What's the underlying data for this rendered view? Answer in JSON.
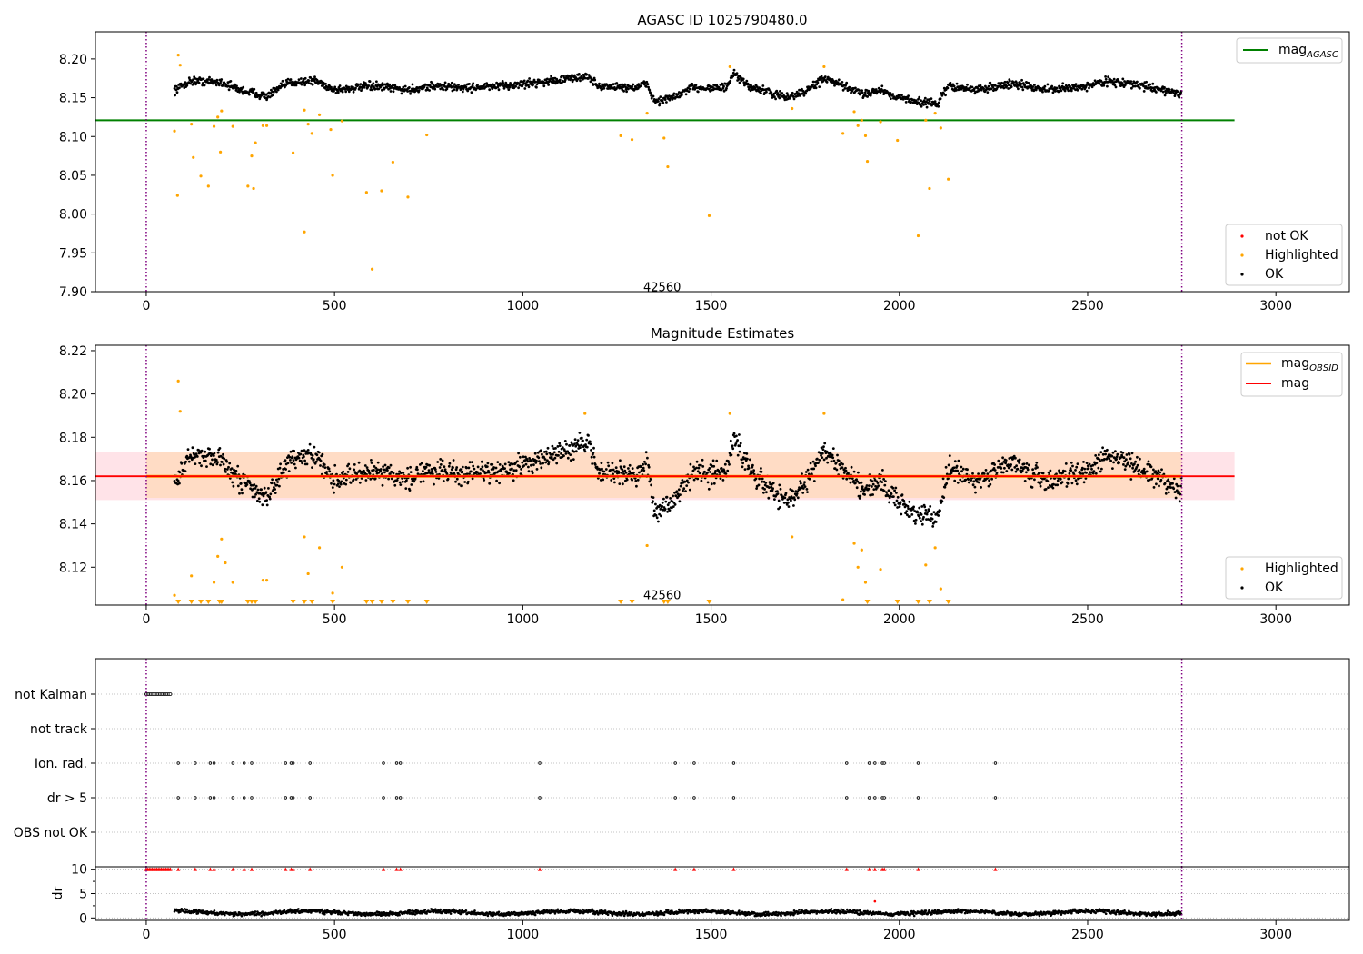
{
  "figure": {
    "colors": {
      "ok": "#000000",
      "highlighted": "#ffa500",
      "not_ok": "#ff0000",
      "mag_agasc": "#008000",
      "mag_obsid": "#ffa500",
      "mag": "#ff0000",
      "band_outer": "#ffc0cb",
      "band_inner": "#ffdab9",
      "vline": "#800080",
      "grid": "#b0b0b0"
    }
  },
  "chart_data": [
    {
      "type": "scatter",
      "title": "AGASC ID 1025790480.0",
      "xlim": [
        -135,
        3195
      ],
      "ylim": [
        7.9,
        8.235
      ],
      "x_ticks": [
        0,
        500,
        1000,
        1500,
        2000,
        2500,
        3000
      ],
      "y_ticks": [
        7.9,
        7.95,
        8.0,
        8.05,
        8.1,
        8.15,
        8.2
      ],
      "y_tick_labels": [
        "7.90",
        "7.95",
        "8.00",
        "8.05",
        "8.10",
        "8.15",
        "8.20"
      ],
      "vlines": [
        0,
        2750
      ],
      "annotation": {
        "text": "42560",
        "x": 1370,
        "y": 7.905
      },
      "hline": {
        "name": "mag_AGASC",
        "label_main": "mag",
        "label_sub": "AGASC",
        "y": 8.121,
        "x_range": [
          -135,
          2890
        ]
      },
      "ok_trend": {
        "x_range": [
          75,
          2750
        ],
        "knots": [
          [
            75,
            8.16
          ],
          [
            120,
            8.172
          ],
          [
            200,
            8.17
          ],
          [
            250,
            8.16
          ],
          [
            320,
            8.152
          ],
          [
            380,
            8.17
          ],
          [
            450,
            8.172
          ],
          [
            500,
            8.16
          ],
          [
            600,
            8.165
          ],
          [
            700,
            8.16
          ],
          [
            750,
            8.165
          ],
          [
            850,
            8.163
          ],
          [
            950,
            8.165
          ],
          [
            1100,
            8.173
          ],
          [
            1170,
            8.178
          ],
          [
            1200,
            8.165
          ],
          [
            1300,
            8.163
          ],
          [
            1330,
            8.168
          ],
          [
            1350,
            8.145
          ],
          [
            1400,
            8.15
          ],
          [
            1450,
            8.163
          ],
          [
            1540,
            8.163
          ],
          [
            1560,
            8.18
          ],
          [
            1600,
            8.165
          ],
          [
            1700,
            8.15
          ],
          [
            1750,
            8.158
          ],
          [
            1800,
            8.175
          ],
          [
            1850,
            8.165
          ],
          [
            1900,
            8.155
          ],
          [
            1950,
            8.16
          ],
          [
            2000,
            8.15
          ],
          [
            2050,
            8.145
          ],
          [
            2100,
            8.142
          ],
          [
            2130,
            8.165
          ],
          [
            2200,
            8.16
          ],
          [
            2300,
            8.168
          ],
          [
            2400,
            8.16
          ],
          [
            2500,
            8.165
          ],
          [
            2550,
            8.172
          ],
          [
            2650,
            8.165
          ],
          [
            2750,
            8.155
          ]
        ]
      },
      "highlighted_points": [
        [
          75,
          8.107
        ],
        [
          83,
          8.024
        ],
        [
          85,
          8.205
        ],
        [
          90,
          8.192
        ],
        [
          120,
          8.116
        ],
        [
          125,
          8.073
        ],
        [
          145,
          8.049
        ],
        [
          165,
          8.036
        ],
        [
          180,
          8.113
        ],
        [
          190,
          8.125
        ],
        [
          197,
          8.08
        ],
        [
          200,
          8.133
        ],
        [
          230,
          8.113
        ],
        [
          270,
          8.036
        ],
        [
          280,
          8.075
        ],
        [
          285,
          8.033
        ],
        [
          290,
          8.092
        ],
        [
          310,
          8.114
        ],
        [
          320,
          8.114
        ],
        [
          390,
          8.079
        ],
        [
          420,
          7.977
        ],
        [
          420,
          8.134
        ],
        [
          430,
          8.116
        ],
        [
          440,
          8.104
        ],
        [
          460,
          8.128
        ],
        [
          490,
          8.109
        ],
        [
          495,
          8.05
        ],
        [
          520,
          8.12
        ],
        [
          585,
          8.028
        ],
        [
          600,
          7.929
        ],
        [
          625,
          8.03
        ],
        [
          655,
          8.067
        ],
        [
          695,
          8.022
        ],
        [
          745,
          8.102
        ],
        [
          1260,
          8.101
        ],
        [
          1290,
          8.096
        ],
        [
          1330,
          8.13
        ],
        [
          1375,
          8.098
        ],
        [
          1385,
          8.061
        ],
        [
          1495,
          7.998
        ],
        [
          1550,
          8.19
        ],
        [
          1715,
          8.136
        ],
        [
          1800,
          8.19
        ],
        [
          1850,
          8.104
        ],
        [
          1880,
          8.132
        ],
        [
          1890,
          8.114
        ],
        [
          1900,
          8.121
        ],
        [
          1910,
          8.101
        ],
        [
          1915,
          8.068
        ],
        [
          1950,
          8.119
        ],
        [
          1995,
          8.095
        ],
        [
          2050,
          7.972
        ],
        [
          2070,
          8.121
        ],
        [
          2080,
          8.033
        ],
        [
          2095,
          8.13
        ],
        [
          2110,
          8.111
        ],
        [
          2130,
          8.045
        ]
      ],
      "legend": [
        "not OK",
        "Highlighted",
        "OK"
      ]
    },
    {
      "type": "scatter",
      "title": "Magnitude Estimates",
      "xlim": [
        -135,
        3195
      ],
      "ylim": [
        8.1025,
        8.2225
      ],
      "x_ticks": [
        0,
        500,
        1000,
        1500,
        2000,
        2500,
        3000
      ],
      "y_ticks": [
        8.12,
        8.14,
        8.16,
        8.18,
        8.2,
        8.22
      ],
      "y_tick_labels": [
        "8.12",
        "8.14",
        "8.16",
        "8.18",
        "8.20",
        "8.22"
      ],
      "vlines": [
        0,
        2750
      ],
      "annotation": {
        "text": "42560",
        "x": 1370,
        "y": 8.1035
      },
      "mag_obsid": {
        "label_main": "mag",
        "label_sub": "OBSID",
        "y": 8.162,
        "x_range": [
          0,
          2750
        ],
        "band": [
          8.152,
          8.173
        ]
      },
      "mag": {
        "label": "mag",
        "y": 8.162,
        "x_range": [
          -135,
          2890
        ],
        "band": [
          8.151,
          8.173
        ]
      },
      "highlighted_points": [
        [
          75,
          8.107
        ],
        [
          85,
          8.206
        ],
        [
          90,
          8.192
        ],
        [
          120,
          8.116
        ],
        [
          180,
          8.113
        ],
        [
          190,
          8.125
        ],
        [
          200,
          8.133
        ],
        [
          210,
          8.122
        ],
        [
          230,
          8.113
        ],
        [
          310,
          8.114
        ],
        [
          320,
          8.114
        ],
        [
          420,
          8.134
        ],
        [
          430,
          8.117
        ],
        [
          460,
          8.129
        ],
        [
          495,
          8.108
        ],
        [
          520,
          8.12
        ],
        [
          1165,
          8.191
        ],
        [
          1330,
          8.13
        ],
        [
          1550,
          8.191
        ],
        [
          1715,
          8.134
        ],
        [
          1800,
          8.191
        ],
        [
          1850,
          8.105
        ],
        [
          1880,
          8.131
        ],
        [
          1890,
          8.12
        ],
        [
          1900,
          8.128
        ],
        [
          1910,
          8.113
        ],
        [
          1950,
          8.119
        ],
        [
          2070,
          8.121
        ],
        [
          2095,
          8.129
        ],
        [
          2110,
          8.11
        ]
      ],
      "highlighted_clipped_x": [
        85,
        120,
        145,
        165,
        195,
        200,
        270,
        280,
        290,
        390,
        420,
        440,
        495,
        585,
        600,
        625,
        655,
        695,
        745,
        1260,
        1290,
        1375,
        1385,
        1495,
        1915,
        1995,
        2050,
        2080,
        2130
      ],
      "legend": [
        "Highlighted",
        "OK"
      ]
    },
    {
      "type": "scatter",
      "title": "",
      "xlim": [
        -135,
        3195
      ],
      "vlines": [
        0,
        2750
      ],
      "categories": [
        "not Kalman",
        "not track",
        "Ion. rad.",
        "dr > 5",
        "OBS not OK"
      ],
      "not_kalman_x_range": [
        0,
        65
      ],
      "flag_x": [
        85,
        130,
        170,
        180,
        230,
        260,
        280,
        370,
        385,
        390,
        435,
        630,
        665,
        675,
        1045,
        1405,
        1455,
        1560,
        1860,
        1920,
        1935,
        1955,
        1960,
        2050,
        2255
      ]
    },
    {
      "type": "scatter",
      "title": "",
      "ylabel": "dr",
      "xlim": [
        -135,
        3195
      ],
      "ylim": [
        -0.5,
        10.5
      ],
      "x_ticks": [
        0,
        500,
        1000,
        1500,
        2000,
        2500,
        3000
      ],
      "y_ticks": [
        0,
        5,
        10
      ],
      "y_tick_labels": [
        "0",
        "5",
        "10"
      ],
      "vlines": [
        0,
        2750
      ],
      "flag_x": [
        0,
        4,
        8,
        12,
        16,
        20,
        24,
        28,
        32,
        36,
        40,
        44,
        48,
        52,
        56,
        60,
        64,
        85,
        130,
        170,
        180,
        230,
        260,
        280,
        370,
        385,
        390,
        435,
        630,
        665,
        675,
        1045,
        1405,
        1455,
        1560,
        1860,
        1920,
        1935,
        1955,
        1960,
        2050,
        2255
      ],
      "flag_y": 10,
      "outlier_points": [
        [
          1935,
          3.4
        ]
      ],
      "ok_x_range": [
        75,
        2750
      ],
      "ok_level": 1.1
    }
  ]
}
